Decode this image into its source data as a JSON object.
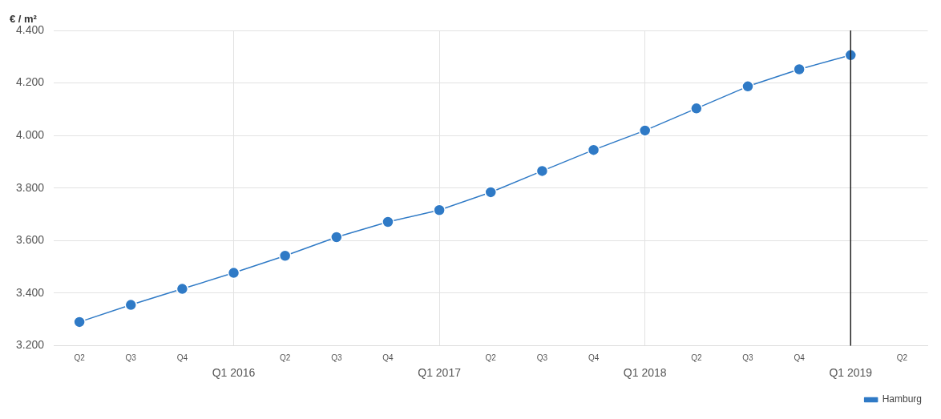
{
  "chart_data": {
    "type": "line",
    "ylabel": "€ / m²",
    "categories": [
      "Q2",
      "Q3",
      "Q4",
      "Q1 2016",
      "Q2",
      "Q3",
      "Q4",
      "Q1 2017",
      "Q2",
      "Q3",
      "Q4",
      "Q1 2018",
      "Q2",
      "Q3",
      "Q4",
      "Q1 2019",
      "Q2"
    ],
    "series": [
      {
        "name": "Hamburg",
        "color": "#2f7ac6",
        "values": [
          3290,
          3355,
          3416,
          3477,
          3542,
          3613,
          3671,
          3716,
          3784,
          3865,
          3945,
          4019,
          4103,
          4187,
          4252,
          4306,
          null
        ]
      }
    ],
    "ylim": [
      3200,
      4400
    ],
    "yticks": [
      {
        "value": 3200,
        "label": "3.200"
      },
      {
        "value": 3400,
        "label": "3.400"
      },
      {
        "value": 3600,
        "label": "3.600"
      },
      {
        "value": 3800,
        "label": "3.800"
      },
      {
        "value": 4000,
        "label": "4.000"
      },
      {
        "value": 4200,
        "label": "4.200"
      },
      {
        "value": 4400,
        "label": "4.400"
      }
    ],
    "ref_lines": [
      {
        "axis": "x",
        "value": "Q1 2019",
        "color": "#222222"
      }
    ],
    "grid": true,
    "legend": "bottom right",
    "marker": "circle",
    "line_style": "solid"
  }
}
